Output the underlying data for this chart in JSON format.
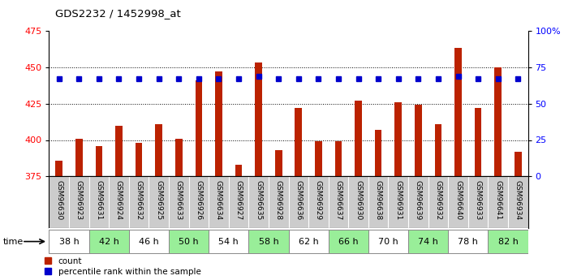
{
  "title": "GDS2232 / 1452998_at",
  "samples": [
    "GSM96630",
    "GSM96923",
    "GSM96631",
    "GSM96924",
    "GSM96632",
    "GSM96925",
    "GSM96633",
    "GSM96926",
    "GSM96634",
    "GSM96927",
    "GSM96635",
    "GSM96928",
    "GSM96636",
    "GSM96929",
    "GSM96637",
    "GSM96930",
    "GSM96638",
    "GSM96931",
    "GSM96639",
    "GSM96932",
    "GSM96640",
    "GSM96933",
    "GSM96641",
    "GSM96934"
  ],
  "time_groups": [
    {
      "label": "38 h",
      "indices": [
        0,
        1
      ],
      "color": "#ffffff"
    },
    {
      "label": "42 h",
      "indices": [
        2,
        3
      ],
      "color": "#99ee99"
    },
    {
      "label": "46 h",
      "indices": [
        4,
        5
      ],
      "color": "#ffffff"
    },
    {
      "label": "50 h",
      "indices": [
        6,
        7
      ],
      "color": "#99ee99"
    },
    {
      "label": "54 h",
      "indices": [
        8,
        9
      ],
      "color": "#ffffff"
    },
    {
      "label": "58 h",
      "indices": [
        10,
        11
      ],
      "color": "#99ee99"
    },
    {
      "label": "62 h",
      "indices": [
        12,
        13
      ],
      "color": "#ffffff"
    },
    {
      "label": "66 h",
      "indices": [
        14,
        15
      ],
      "color": "#99ee99"
    },
    {
      "label": "70 h",
      "indices": [
        16,
        17
      ],
      "color": "#ffffff"
    },
    {
      "label": "74 h",
      "indices": [
        18,
        19
      ],
      "color": "#99ee99"
    },
    {
      "label": "78 h",
      "indices": [
        20,
        21
      ],
      "color": "#ffffff"
    },
    {
      "label": "82 h",
      "indices": [
        22,
        23
      ],
      "color": "#99ee99"
    }
  ],
  "count_values": [
    386,
    401,
    396,
    410,
    398,
    411,
    401,
    441,
    447,
    383,
    453,
    393,
    422,
    399,
    399,
    427,
    407,
    426,
    424,
    411,
    463,
    422,
    450,
    392
  ],
  "percentile_values": [
    67,
    67,
    67,
    67,
    67,
    67,
    67,
    67,
    67,
    67,
    69,
    67,
    67,
    67,
    67,
    67,
    67,
    67,
    67,
    67,
    69,
    67,
    67,
    67
  ],
  "ylim_left": [
    375,
    475
  ],
  "ylim_right": [
    0,
    100
  ],
  "yticks_left": [
    375,
    400,
    425,
    450,
    475
  ],
  "ytick_labels_right": [
    "0",
    "25",
    "50",
    "75",
    "100%"
  ],
  "yticks_right": [
    0,
    25,
    50,
    75,
    100
  ],
  "bar_color": "#bb2200",
  "dot_color": "#0000cc",
  "background_color": "#ffffff",
  "sample_bg": "#cccccc",
  "label_area_bg": "#bbbbbb"
}
